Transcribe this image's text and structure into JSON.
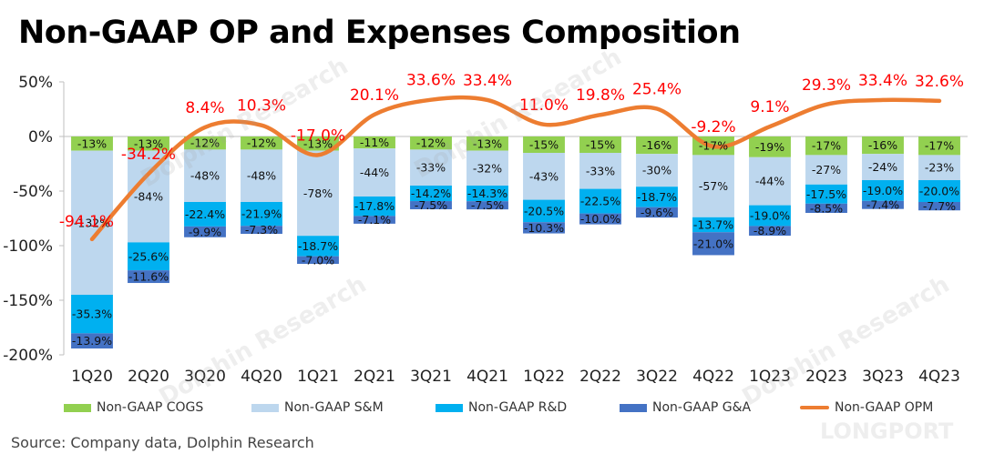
{
  "title": "Non-GAAP OP and Expenses Composition",
  "source": "Source: Company data, Dolphin Research",
  "watermarks": [
    "Dolphin Research",
    "Dolphin Research",
    "Dolphin Research",
    "Dolphin Research",
    "LONGPORT"
  ],
  "colors": {
    "cogs": "#92D050",
    "sm": "#BDD7EE",
    "rd": "#00B0F0",
    "ga": "#4472C4",
    "opm": "#ED7D31",
    "opm_label": "#FF0000",
    "grid": "#D9D9D9"
  },
  "chart_data": {
    "type": "bar",
    "stacked": true,
    "categories": [
      "1Q20",
      "2Q20",
      "3Q20",
      "4Q20",
      "1Q21",
      "2Q21",
      "3Q21",
      "4Q21",
      "1Q22",
      "2Q22",
      "3Q22",
      "4Q22",
      "1Q23",
      "2Q23",
      "3Q23",
      "4Q23"
    ],
    "ylim": [
      -200,
      50
    ],
    "yticks": [
      50,
      0,
      -50,
      -100,
      -150,
      -200
    ],
    "ytick_labels": [
      "50%",
      "0%",
      "-50%",
      "-100%",
      "-150%",
      "-200%"
    ],
    "grid": false,
    "legend_position": "bottom",
    "series": [
      {
        "name": "Non-GAAP COGS",
        "key": "cogs",
        "values": [
          -13,
          -13,
          -12,
          -12,
          -13,
          -11,
          -12,
          -13,
          -15,
          -15,
          -16,
          -17,
          -19,
          -17,
          -16,
          -17
        ],
        "labels": [
          "-13%",
          "-13%",
          "-12%",
          "-12%",
          "-13%",
          "-11%",
          "-12%",
          "-13%",
          "-15%",
          "-15%",
          "-16%",
          "-17%",
          "-19%",
          "-17%",
          "-16%",
          "-17%"
        ]
      },
      {
        "name": "Non-GAAP S&M",
        "key": "sm",
        "values": [
          -132,
          -84,
          -48,
          -48,
          -78,
          -44,
          -33,
          -32,
          -43,
          -33,
          -30,
          -57,
          -44,
          -27,
          -24,
          -23
        ],
        "labels": [
          "-132%",
          "-84%",
          "-48%",
          "-48%",
          "-78%",
          "-44%",
          "-33%",
          "-32%",
          "-43%",
          "-33%",
          "-30%",
          "-57%",
          "-44%",
          "-27%",
          "-24%",
          "-23%"
        ]
      },
      {
        "name": "Non-GAAP R&D",
        "key": "rd",
        "values": [
          -35.3,
          -25.6,
          -22.4,
          -21.9,
          -18.7,
          -17.8,
          -14.2,
          -14.3,
          -20.5,
          -22.5,
          -18.7,
          -13.7,
          -19.0,
          -17.5,
          -19.0,
          -20.0
        ],
        "labels": [
          "-35.3%",
          "-25.6%",
          "-22.4%",
          "-21.9%",
          "-18.7%",
          "-17.8%",
          "-14.2%",
          "-14.3%",
          "-20.5%",
          "-22.5%",
          "-18.7%",
          "-13.7%",
          "-19.0%",
          "-17.5%",
          "-19.0%",
          "-20.0%"
        ]
      },
      {
        "name": "Non-GAAP G&A",
        "key": "ga",
        "values": [
          -13.9,
          -11.6,
          -9.9,
          -7.3,
          -7.0,
          -7.1,
          -7.5,
          -7.5,
          -10.3,
          -10.0,
          -9.6,
          -21.0,
          -8.9,
          -8.5,
          -7.4,
          -7.7
        ],
        "labels": [
          "-13.9%",
          "-11.6%",
          "-9.9%",
          "-7.3%",
          "-7.0%",
          "-7.1%",
          "-7.5%",
          "-7.5%",
          "-10.3%",
          "-10.0%",
          "-9.6%",
          "-21.0%",
          "-8.9%",
          "-8.5%",
          "-7.4%",
          "-7.7%"
        ]
      }
    ],
    "line": {
      "name": "Non-GAAP OPM",
      "values": [
        -94.1,
        -34.2,
        8.4,
        10.3,
        -17.0,
        20.1,
        33.6,
        33.4,
        11.0,
        19.8,
        25.4,
        -9.2,
        9.1,
        29.3,
        33.4,
        32.6
      ],
      "labels": [
        "-94.1%",
        "-34.2%",
        "8.4%",
        "10.3%",
        "-17.0%",
        "20.1%",
        "33.6%",
        "33.4%",
        "11.0%",
        "19.8%",
        "25.4%",
        "-9.2%",
        "9.1%",
        "29.3%",
        "33.4%",
        "32.6%"
      ]
    }
  }
}
